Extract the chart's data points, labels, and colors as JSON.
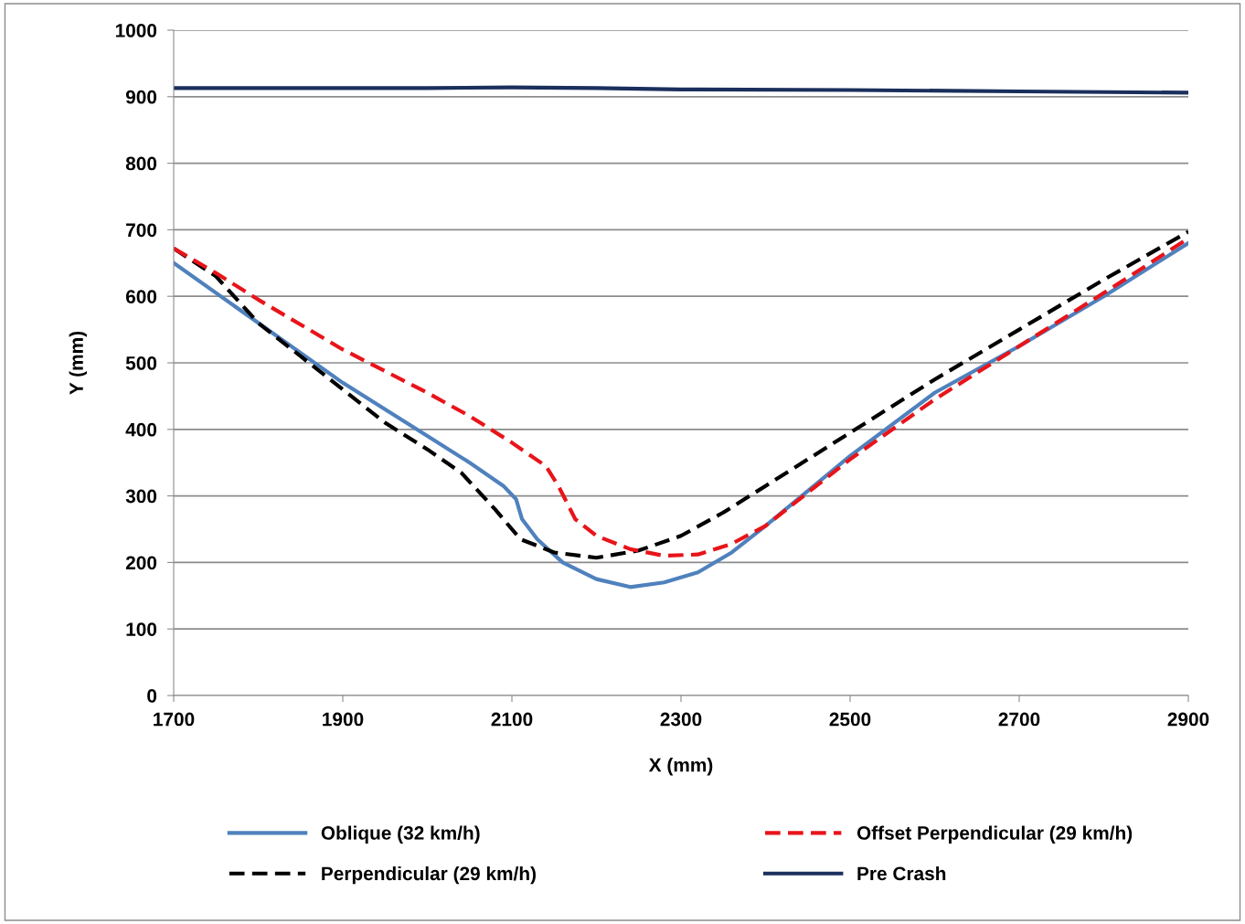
{
  "chart_data": {
    "type": "line",
    "xlabel": "X (mm)",
    "ylabel": "Y (mm)",
    "xlim": [
      1700,
      2900
    ],
    "xticks": [
      1700,
      1900,
      2100,
      2300,
      2500,
      2700,
      2900
    ],
    "ylim": [
      0,
      1000
    ],
    "yticks": [
      0,
      100,
      200,
      300,
      400,
      500,
      600,
      700,
      800,
      900,
      1000
    ],
    "grid": "y",
    "legend": "bottom",
    "series": [
      {
        "name": "Oblique (32 km/h)",
        "color": "#4f81bd",
        "line_style": "solid",
        "x": [
          1700,
          1800,
          1900,
          2000,
          2050,
          2090,
          2105,
          2112,
          2130,
          2160,
          2200,
          2240,
          2280,
          2320,
          2360,
          2400,
          2500,
          2600,
          2700,
          2800,
          2900
        ],
        "values": [
          650,
          560,
          470,
          390,
          350,
          315,
          295,
          265,
          235,
          200,
          175,
          163,
          170,
          185,
          215,
          255,
          360,
          455,
          525,
          600,
          680
        ]
      },
      {
        "name": "Perpendicular (29 km/h)",
        "color": "#000000",
        "line_style": "dashed",
        "x": [
          1700,
          1750,
          1800,
          1850,
          1900,
          1950,
          2000,
          2040,
          2080,
          2110,
          2150,
          2200,
          2250,
          2300,
          2350,
          2400,
          2500,
          2600,
          2700,
          2800,
          2900
        ],
        "values": [
          672,
          630,
          560,
          510,
          460,
          410,
          370,
          335,
          280,
          235,
          215,
          207,
          218,
          240,
          275,
          315,
          395,
          475,
          550,
          625,
          697
        ]
      },
      {
        "name": "Offset Perpendicular (29 km/h)",
        "color": "#e8141a",
        "line_style": "dashed",
        "x": [
          1700,
          1750,
          1800,
          1900,
          2000,
          2050,
          2100,
          2140,
          2155,
          2175,
          2200,
          2240,
          2280,
          2320,
          2360,
          2400,
          2500,
          2600,
          2700,
          2800,
          2900
        ],
        "values": [
          672,
          635,
          595,
          520,
          455,
          420,
          380,
          345,
          315,
          265,
          240,
          220,
          210,
          212,
          228,
          255,
          355,
          445,
          525,
          605,
          687
        ]
      },
      {
        "name": "Pre Crash",
        "color": "#1a2f5c",
        "line_style": "solid",
        "x": [
          1700,
          2000,
          2100,
          2200,
          2300,
          2500,
          2700,
          2900
        ],
        "values": [
          913,
          913,
          914,
          913,
          911,
          910,
          908,
          906
        ]
      }
    ]
  }
}
